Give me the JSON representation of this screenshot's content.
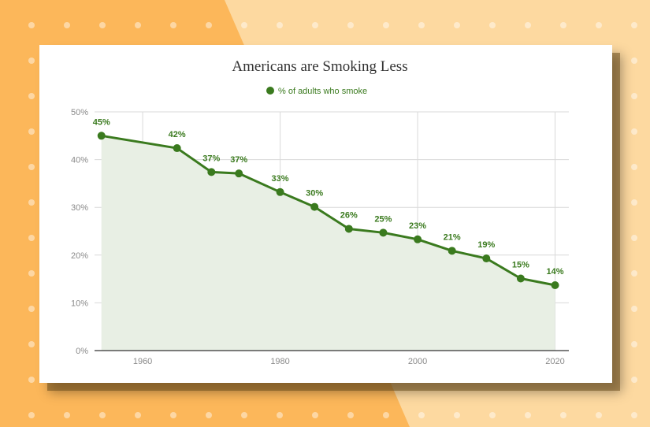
{
  "colors": {
    "series": "#3a7a1e",
    "area": "#e8efe4",
    "grid": "#d9d9d9",
    "axis": "#333333",
    "bg_left": "#fcb75a",
    "bg_right": "#fdd9a0",
    "dots": "#ffffff"
  },
  "chart_data": {
    "type": "area",
    "title": "Americans are Smoking Less",
    "xlabel": "",
    "ylabel": "",
    "x_ticks": [
      "1960",
      "1980",
      "2000",
      "2020"
    ],
    "y_ticks": [
      "0%",
      "10%",
      "20%",
      "30%",
      "40%",
      "50%"
    ],
    "xlim": [
      1953,
      2022
    ],
    "ylim": [
      0,
      50
    ],
    "grid": true,
    "legend_position": "top-center",
    "series": [
      {
        "name": "% of adults who smoke",
        "points": [
          {
            "x": 1954,
            "y": 45,
            "label": "45%"
          },
          {
            "x": 1965,
            "y": 42.4,
            "label": "42%"
          },
          {
            "x": 1970,
            "y": 37.4,
            "label": "37%"
          },
          {
            "x": 1974,
            "y": 37.1,
            "label": "37%"
          },
          {
            "x": 1980,
            "y": 33.2,
            "label": "33%"
          },
          {
            "x": 1985,
            "y": 30.1,
            "label": "30%"
          },
          {
            "x": 1990,
            "y": 25.5,
            "label": "26%"
          },
          {
            "x": 1995,
            "y": 24.7,
            "label": "25%"
          },
          {
            "x": 2000,
            "y": 23.3,
            "label": "23%"
          },
          {
            "x": 2005,
            "y": 20.9,
            "label": "21%"
          },
          {
            "x": 2010,
            "y": 19.3,
            "label": "19%"
          },
          {
            "x": 2015,
            "y": 15.1,
            "label": "15%"
          },
          {
            "x": 2020,
            "y": 13.7,
            "label": "14%"
          }
        ]
      }
    ]
  }
}
